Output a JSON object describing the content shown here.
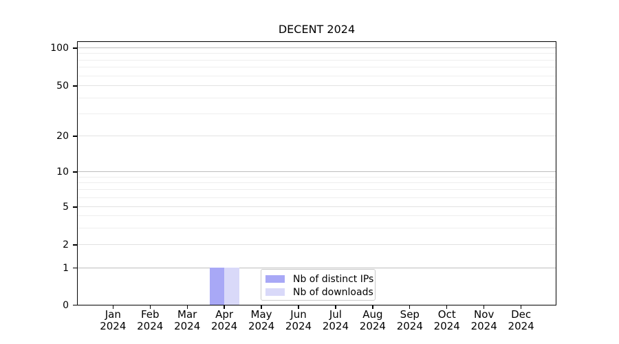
{
  "title": "DECENT 2024",
  "chart_data": {
    "type": "bar",
    "title": "DECENT 2024",
    "categories": [
      "Jan 2024",
      "Feb 2024",
      "Mar 2024",
      "Apr 2024",
      "May 2024",
      "Jun 2024",
      "Jul 2024",
      "Aug 2024",
      "Sep 2024",
      "Oct 2024",
      "Nov 2024",
      "Dec 2024"
    ],
    "series": [
      {
        "name": "Nb of distinct IPs",
        "color": "#a8a8f6",
        "values": [
          0,
          0,
          0,
          1,
          0,
          0,
          0,
          0,
          0,
          0,
          0,
          0
        ]
      },
      {
        "name": "Nb of downloads",
        "color": "#d9d9f9",
        "values": [
          0,
          0,
          0,
          1,
          0,
          0,
          0,
          0,
          0,
          0,
          0,
          0
        ]
      }
    ],
    "xlabel": "",
    "ylabel": "",
    "y_scale": "symlog-like",
    "ylim": [
      0,
      113
    ],
    "y_ticks": [
      100,
      50,
      20,
      10,
      5,
      2,
      1,
      0
    ],
    "y_minor_gridlines": [
      90,
      80,
      70,
      60,
      40,
      30,
      9,
      8,
      7,
      6,
      4,
      3
    ],
    "grid": "horizontal",
    "legend_position": "inside-bottom-center"
  },
  "legend": {
    "items": [
      {
        "label": "Nb of distinct IPs",
        "color": "#a8a8f6"
      },
      {
        "label": "Nb of downloads",
        "color": "#d9d9f9"
      }
    ]
  },
  "colors": {
    "background": "#ffffff",
    "spine": "#000000",
    "grid_major": "#bdbdbd",
    "grid_labeled": "#e2e2e2",
    "grid_minor": "#eeeeee",
    "text": "#000000",
    "legend_border": "#c9c9c9"
  }
}
